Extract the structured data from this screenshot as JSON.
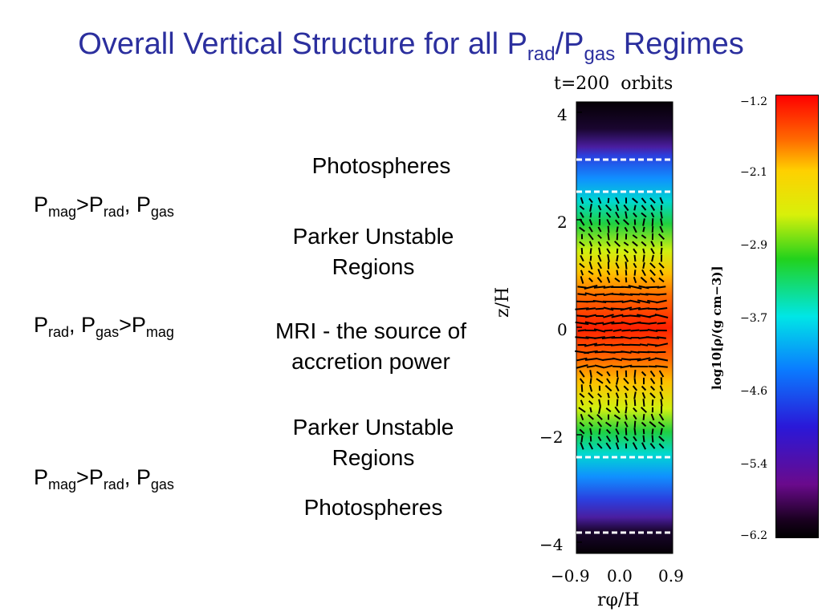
{
  "slide": {
    "title_main": "Overall Vertical Structure for all P",
    "title_sub1": "rad",
    "title_sep": "/P",
    "title_sub2": "gas",
    "title_end": " Regimes"
  },
  "left": {
    "row1": {
      "p1": "P",
      "s1": "mag",
      "t1": ">P",
      "s2": "rad",
      "t2": ", P",
      "s3": "gas"
    },
    "row2": {
      "p1": "P",
      "s1": "rad",
      "t1": ", P",
      "s2": "gas",
      "t2": ">P",
      "s3": "mag"
    },
    "row3": {
      "p1": "P",
      "s1": "mag",
      "t1": ">P",
      "s2": "rad",
      "t2": ", P",
      "s3": "gas"
    }
  },
  "middle": {
    "photo_top": "Photospheres",
    "parker_top_1": "Parker Unstable",
    "parker_top_2": "Regions",
    "mri_1": "MRI - the source of",
    "mri_2": "accretion power",
    "parker_bot_1": "Parker Unstable",
    "parker_bot_2": "Regions",
    "photo_bot": "Photospheres"
  },
  "figure": {
    "time_label": "t=200  orbits",
    "y_label": "z/H",
    "x_label": "rφ/H",
    "y_ticks": [
      "4",
      "2",
      "0",
      "−2",
      "−4"
    ],
    "x_ticks": [
      "−0.9",
      "0.0",
      "0.9"
    ],
    "colorbar_label": "log10[ρ/(g cm−3)]",
    "colorbar_ticks": [
      "−1.2",
      "−2.1",
      "−2.9",
      "−3.7",
      "−4.6",
      "−5.4",
      "−6.2"
    ],
    "colormap": [
      "#000000",
      "#6a0a8c",
      "#2a18d8",
      "#0a7cff",
      "#00e6e6",
      "#22d21c",
      "#d8f00a",
      "#ffd000",
      "#ff7800",
      "#ff1a00"
    ]
  }
}
